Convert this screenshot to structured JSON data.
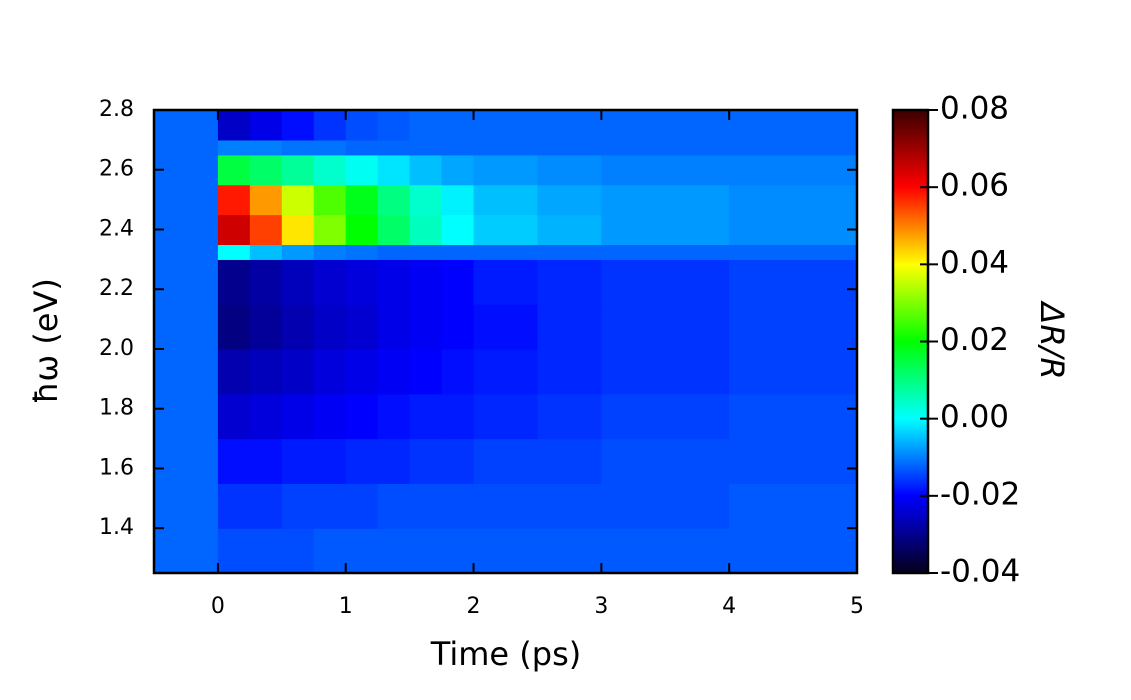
{
  "chart_data": {
    "type": "heatmap",
    "xlabel": "Time (ps)",
    "ylabel": "ħω (eV)",
    "colorbar_label": "ΔR/R",
    "xlim": [
      -0.5,
      5
    ],
    "ylim": [
      1.25,
      2.8
    ],
    "clim": [
      -0.04,
      0.08
    ],
    "xticks": [
      0,
      1,
      2,
      3,
      4,
      5
    ],
    "yticks": [
      {
        "value": 1.4,
        "label": "1.4"
      },
      {
        "value": 1.6,
        "label": "1.6"
      },
      {
        "value": 1.8,
        "label": "1.8"
      },
      {
        "value": 2,
        "label": "2.0"
      },
      {
        "value": 2.2,
        "label": "2.2"
      },
      {
        "value": 2.4,
        "label": "2.4"
      },
      {
        "value": 2.6,
        "label": "2.6"
      },
      {
        "value": 2.8,
        "label": "2.8"
      }
    ],
    "cticks": [
      -0.04,
      -0.02,
      {
        "value": 0,
        "label": "0.00"
      },
      0.02,
      0.04,
      0.06,
      0.08
    ],
    "colormap": [
      "#05001a",
      "#0000ff",
      "#00ffff",
      "#00ff00",
      "#ffff00",
      "#ff0000",
      "#3a0000"
    ],
    "xedges": [
      -0.5,
      0,
      0.25,
      0.5,
      0.75,
      1,
      1.25,
      1.5,
      1.75,
      2,
      2.5,
      3,
      4,
      5
    ],
    "yedges": [
      1.25,
      1.4,
      1.55,
      1.7,
      1.85,
      2.0,
      2.15,
      2.3,
      2.35,
      2.45,
      2.55,
      2.65,
      2.7,
      2.8
    ],
    "z": [
      [
        -0.012,
        -0.014,
        -0.014,
        -0.014,
        -0.013,
        -0.013,
        -0.013,
        -0.013,
        -0.013,
        -0.013,
        -0.013,
        -0.013,
        -0.013
      ],
      [
        -0.012,
        -0.016,
        -0.016,
        -0.015,
        -0.015,
        -0.015,
        -0.014,
        -0.014,
        -0.014,
        -0.014,
        -0.014,
        -0.014,
        -0.013
      ],
      [
        -0.012,
        -0.019,
        -0.019,
        -0.018,
        -0.018,
        -0.017,
        -0.017,
        -0.016,
        -0.016,
        -0.015,
        -0.015,
        -0.014,
        -0.014
      ],
      [
        -0.012,
        -0.024,
        -0.023,
        -0.022,
        -0.021,
        -0.02,
        -0.019,
        -0.018,
        -0.018,
        -0.017,
        -0.016,
        -0.015,
        -0.014
      ],
      [
        -0.012,
        -0.027,
        -0.026,
        -0.025,
        -0.023,
        -0.022,
        -0.021,
        -0.02,
        -0.019,
        -0.018,
        -0.017,
        -0.016,
        -0.015
      ],
      [
        -0.012,
        -0.031,
        -0.029,
        -0.027,
        -0.025,
        -0.024,
        -0.022,
        -0.021,
        -0.02,
        -0.019,
        -0.017,
        -0.016,
        -0.015
      ],
      [
        -0.012,
        -0.03,
        -0.028,
        -0.026,
        -0.024,
        -0.023,
        -0.022,
        -0.021,
        -0.02,
        -0.018,
        -0.017,
        -0.016,
        -0.015
      ],
      [
        -0.012,
        0.0,
        -0.005,
        -0.008,
        -0.01,
        -0.011,
        -0.012,
        -0.012,
        -0.012,
        -0.012,
        -0.012,
        -0.012,
        -0.012
      ],
      [
        -0.012,
        0.065,
        0.055,
        0.042,
        0.03,
        0.02,
        0.012,
        0.005,
        0.0,
        -0.004,
        -0.006,
        -0.008,
        -0.009
      ],
      [
        -0.012,
        0.058,
        0.048,
        0.036,
        0.026,
        0.018,
        0.01,
        0.004,
        -0.001,
        -0.005,
        -0.007,
        -0.008,
        -0.009
      ],
      [
        -0.012,
        0.015,
        0.012,
        0.008,
        0.004,
        0.001,
        -0.002,
        -0.005,
        -0.007,
        -0.008,
        -0.009,
        -0.01,
        -0.01
      ],
      [
        -0.012,
        -0.01,
        -0.01,
        -0.011,
        -0.011,
        -0.012,
        -0.012,
        -0.012,
        -0.012,
        -0.012,
        -0.012,
        -0.012,
        -0.012
      ],
      [
        -0.012,
        -0.025,
        -0.022,
        -0.019,
        -0.016,
        -0.014,
        -0.013,
        -0.012,
        -0.012,
        -0.012,
        -0.012,
        -0.012,
        -0.012
      ]
    ]
  }
}
